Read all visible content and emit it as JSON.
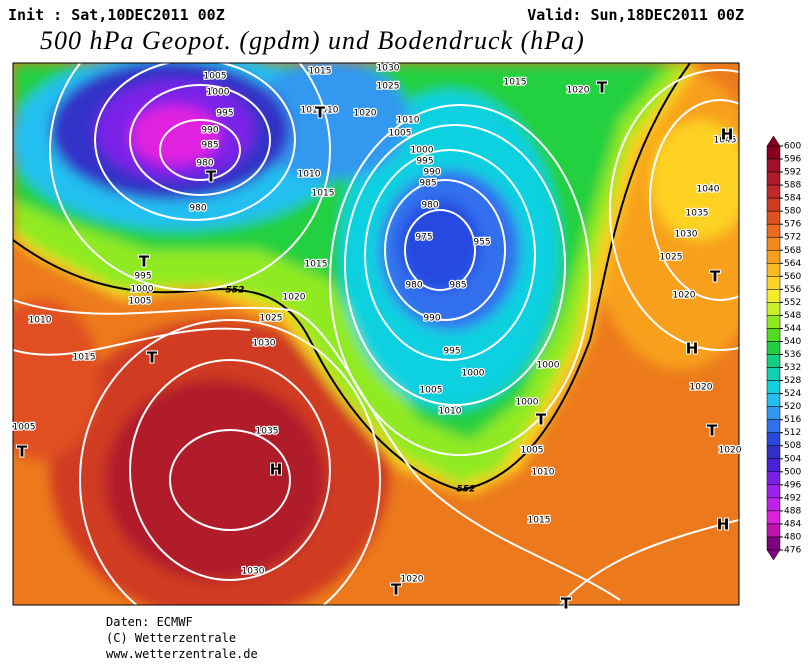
{
  "header": {
    "init": "Init : Sat,10DEC2011 00Z",
    "valid": "Valid: Sun,18DEC2011 00Z",
    "title": "500 hPa Geopot. (gpdm) und Bodendruck (hPa)"
  },
  "map": {
    "isobar_labels": [
      "1005",
      "1000",
      "995",
      "990",
      "985",
      "980",
      "980",
      "1015",
      "1010",
      "1020",
      "1030",
      "1025",
      "1015",
      "1020",
      "1010",
      "1005",
      "1000",
      "995",
      "990",
      "985",
      "980",
      "975",
      "955",
      "980",
      "985",
      "990",
      "995",
      "1000",
      "1005",
      "1010",
      "1000",
      "1000",
      "1005",
      "1010",
      "1015",
      "1020",
      "1030",
      "1035",
      "1030",
      "1025",
      "1020",
      "1015",
      "1010",
      "1015",
      "1010",
      "1005",
      "1000",
      "995",
      "1015",
      "1010",
      "1005",
      "1045",
      "1040",
      "1035",
      "1030",
      "1025",
      "1020",
      "1020",
      "1020"
    ],
    "pressure_centers": [
      "T",
      "T",
      "T",
      "T",
      "T",
      "T",
      "T",
      "T",
      "T",
      "T",
      "H",
      "H",
      "H",
      "H",
      "T"
    ],
    "contour_labels": [
      "552",
      "552"
    ]
  },
  "colorbar": {
    "ticks": [
      600,
      596,
      592,
      588,
      584,
      580,
      576,
      572,
      568,
      564,
      560,
      556,
      552,
      548,
      544,
      540,
      536,
      532,
      528,
      524,
      520,
      516,
      512,
      508,
      504,
      500,
      496,
      492,
      488,
      484,
      480,
      476
    ],
    "colors": [
      "#8b0020",
      "#a0102a",
      "#b01a2a",
      "#c0282a",
      "#d03a20",
      "#e05020",
      "#ec6a1c",
      "#f4861c",
      "#f8a01e",
      "#fbba20",
      "#fdd224",
      "#f6ec2a",
      "#c8f024",
      "#90ea20",
      "#50dc20",
      "#20d040",
      "#10d080",
      "#10d0b0",
      "#10d0e0",
      "#20c0f0",
      "#3098f0",
      "#3070ee",
      "#2848e0",
      "#3030c8",
      "#4a20d8",
      "#7a20e8",
      "#a020f0",
      "#c020e8",
      "#e020e0",
      "#c010b0",
      "#800080"
    ]
  },
  "footer": {
    "source": "Daten: ECMWF",
    "copyright": "(C) Wetterzentrale",
    "url": "www.wetterzentrale.de"
  }
}
